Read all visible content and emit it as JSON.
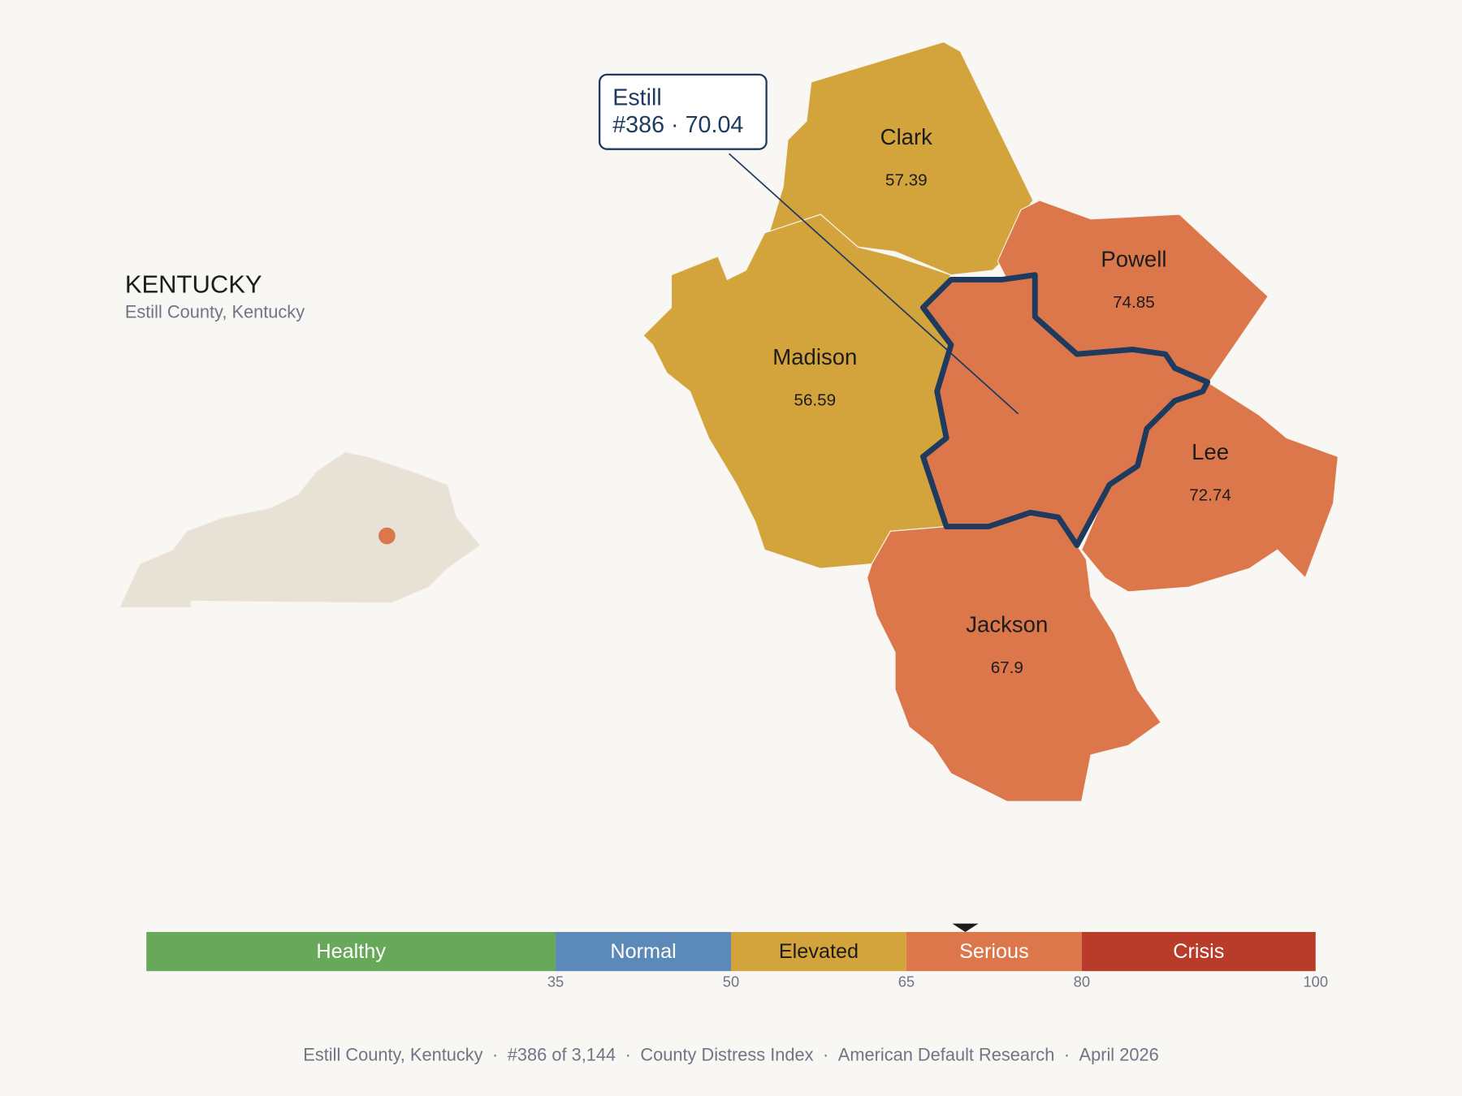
{
  "header": {
    "title": "KENTUCKY",
    "subtitle": "Estill County, Kentucky"
  },
  "focus": {
    "name": "Estill",
    "rank": "#386",
    "separator": "·",
    "value": 70.04
  },
  "counties": [
    {
      "name": "Clark",
      "value": 57.39
    },
    {
      "name": "Madison",
      "value": 56.59
    },
    {
      "name": "Powell",
      "value": 74.85
    },
    {
      "name": "Lee",
      "value": 72.74
    },
    {
      "name": "Jackson",
      "value": 67.9
    }
  ],
  "scale": {
    "range": [
      0,
      100
    ],
    "bands": [
      {
        "label": "Healthy",
        "color": "#68a85a",
        "to": 35
      },
      {
        "label": "Normal",
        "color": "#5b8ab8",
        "to": 50
      },
      {
        "label": "Elevated",
        "color": "#d4a43c",
        "to": 65
      },
      {
        "label": "Serious",
        "color": "#dc774b",
        "to": 80
      },
      {
        "label": "Crisis",
        "color": "#b93c2b",
        "to": 100
      }
    ],
    "ticks": [
      35,
      50,
      65,
      80,
      100
    ]
  },
  "footer": {
    "separator": "·",
    "items": [
      "Estill County, Kentucky",
      "#386 of 3,144",
      "County Distress Index",
      "American Default Research",
      "April 2026"
    ]
  }
}
